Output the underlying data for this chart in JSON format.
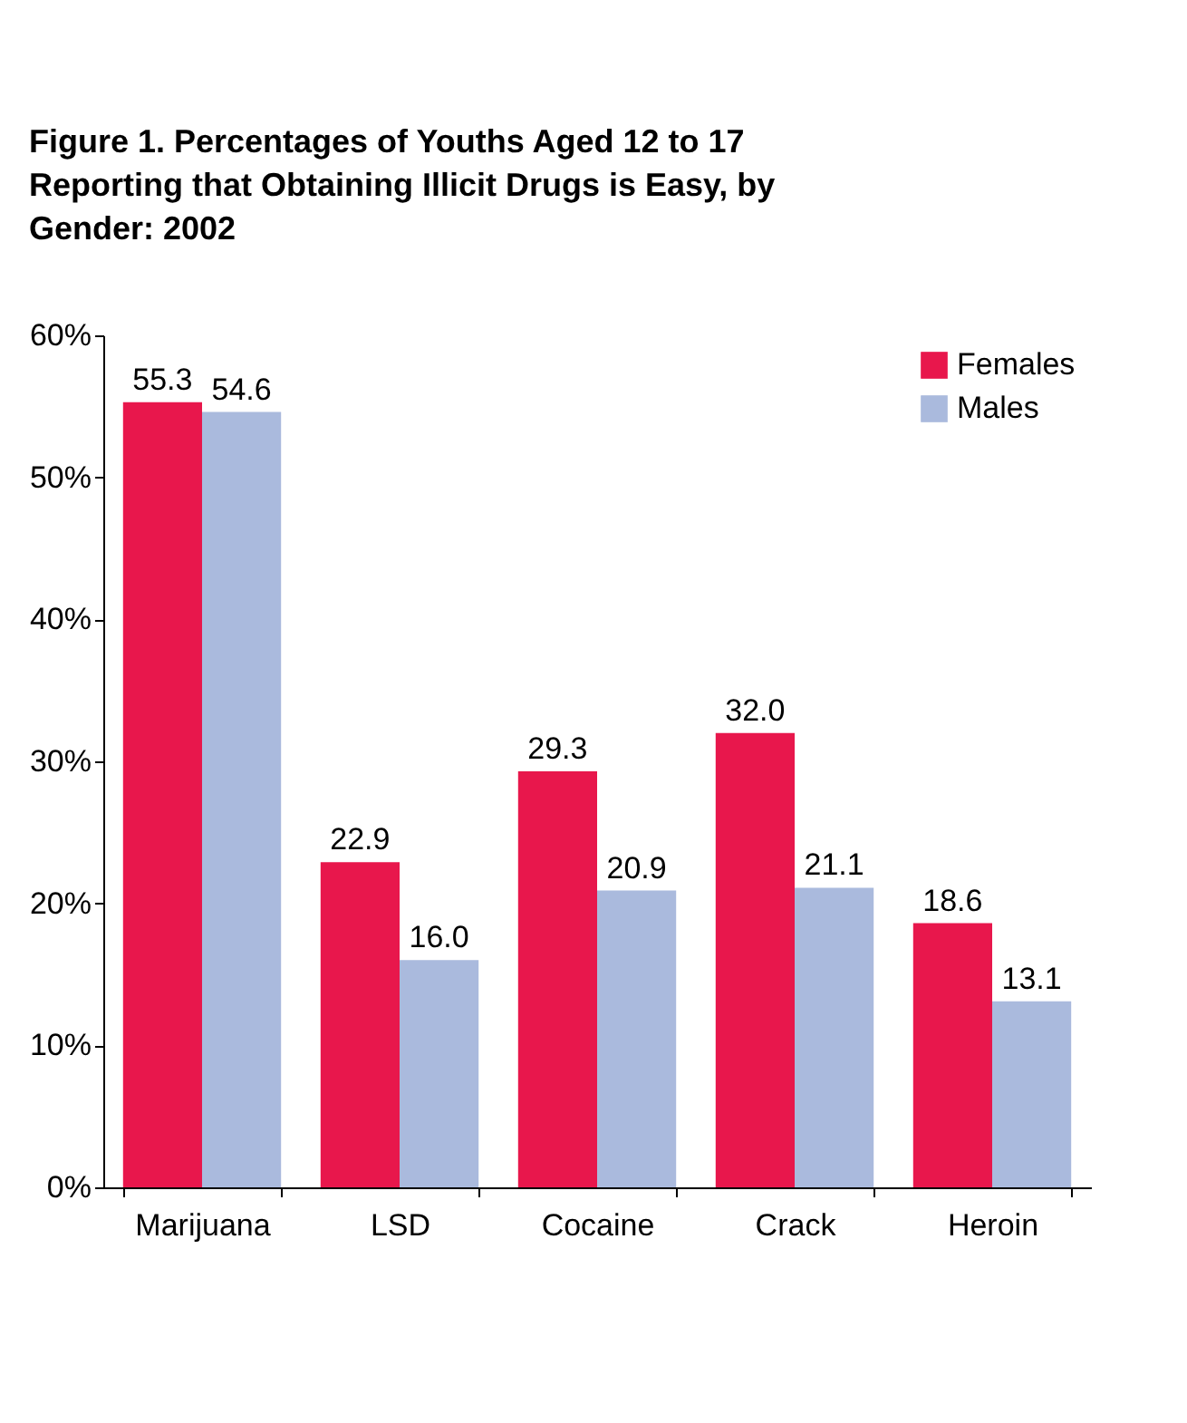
{
  "chart_data": {
    "type": "bar",
    "title": "Figure 1.  Percentages of Youths Aged 12 to 17 Reporting that Obtaining Illicit Drugs is Easy, by Gender:   2002",
    "categories": [
      "Marijuana",
      "LSD",
      "Cocaine",
      "Crack",
      "Heroin"
    ],
    "series": [
      {
        "name": "Females",
        "color": "#e8174c",
        "values": [
          55.3,
          22.9,
          29.3,
          32.0,
          18.6
        ],
        "value_labels": [
          "55.3",
          "22.9",
          "29.3",
          "32.0",
          "18.6"
        ]
      },
      {
        "name": "Males",
        "color": "#aabadd",
        "values": [
          54.6,
          16.0,
          20.9,
          21.1,
          13.1
        ],
        "value_labels": [
          "54.6",
          "16.0",
          "20.9",
          "21.1",
          "13.1"
        ]
      }
    ],
    "ylim": [
      0,
      60
    ],
    "yticks": [
      {
        "value": 0,
        "label": "0%"
      },
      {
        "value": 10,
        "label": "10%"
      },
      {
        "value": 20,
        "label": "20%"
      },
      {
        "value": 30,
        "label": "30%"
      },
      {
        "value": 40,
        "label": "40%"
      },
      {
        "value": 50,
        "label": "50%"
      },
      {
        "value": 60,
        "label": "60%"
      }
    ],
    "grid": false,
    "legend": "top right"
  }
}
